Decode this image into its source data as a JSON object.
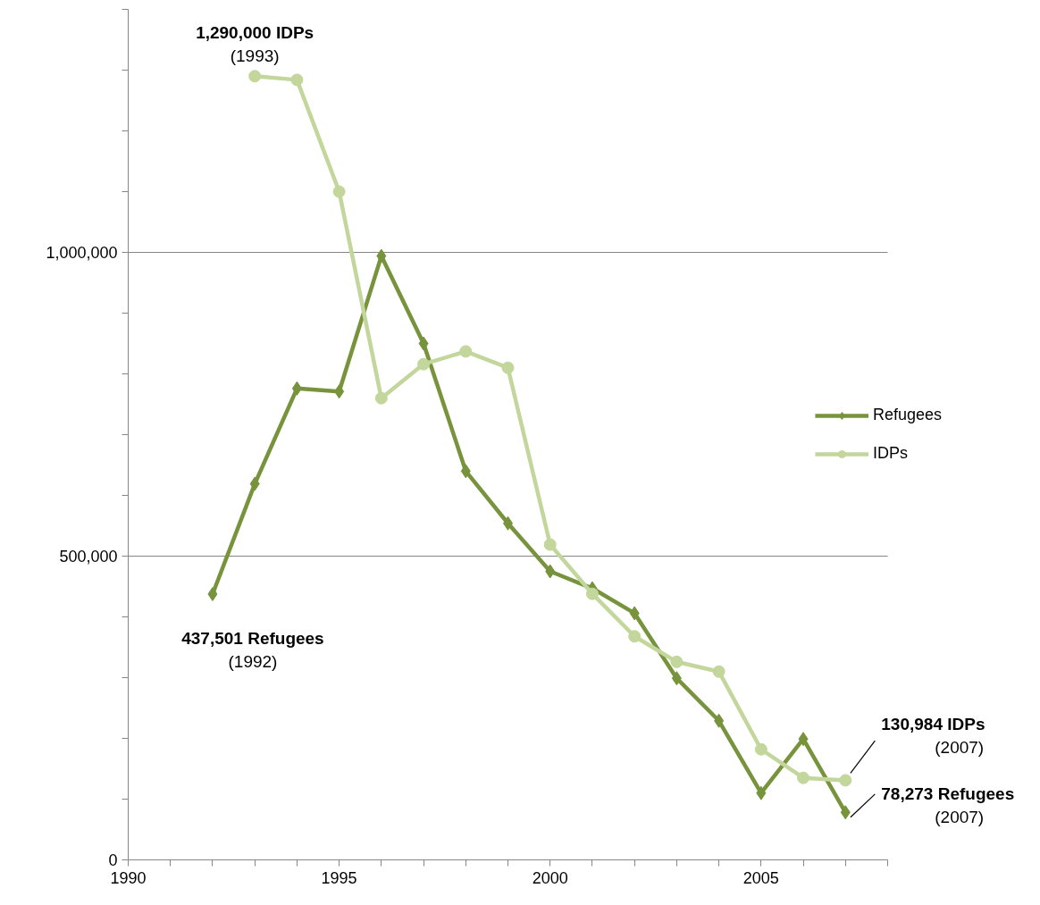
{
  "chart_data": {
    "type": "line",
    "x": [
      1992,
      1993,
      1994,
      1995,
      1996,
      1997,
      1998,
      1999,
      2000,
      2001,
      2002,
      2003,
      2004,
      2005,
      2006,
      2007
    ],
    "series": [
      {
        "name": "Refugees",
        "color": "#77933c",
        "marker": "diamond",
        "values": [
          437501,
          619000,
          776000,
          771000,
          994000,
          850000,
          640000,
          554000,
          475000,
          447000,
          406000,
          299000,
          229000,
          110000,
          199000,
          78273
        ]
      },
      {
        "name": "IDPs",
        "color": "#c3d69b",
        "marker": "circle",
        "values": [
          null,
          1290000,
          1284000,
          1100000,
          760000,
          816000,
          837000,
          810000,
          519000,
          438000,
          368000,
          326000,
          310000,
          182000,
          135000,
          130984
        ]
      }
    ],
    "xlim": [
      1990,
      2008
    ],
    "xticks": [
      1990,
      {
        "value": 1991,
        "label": null
      },
      {
        "value": 1992,
        "label": null
      },
      {
        "value": 1993,
        "label": null
      },
      {
        "value": 1994,
        "label": null
      },
      1995,
      {
        "value": 1996,
        "label": null
      },
      {
        "value": 1997,
        "label": null
      },
      {
        "value": 1998,
        "label": null
      },
      {
        "value": 1999,
        "label": null
      },
      2000,
      {
        "value": 2001,
        "label": null
      },
      {
        "value": 2002,
        "label": null
      },
      {
        "value": 2003,
        "label": null
      },
      {
        "value": 2004,
        "label": null
      },
      2005,
      {
        "value": 2006,
        "label": null
      },
      {
        "value": 2007,
        "label": null
      },
      {
        "value": 2008,
        "label": null
      }
    ],
    "ylim": [
      0,
      1400000
    ],
    "yticks": [
      0,
      {
        "value": 100000,
        "label": null
      },
      {
        "value": 200000,
        "label": null
      },
      {
        "value": 300000,
        "label": null
      },
      {
        "value": 400000,
        "label": null
      },
      {
        "value": 500000,
        "label": "500,000"
      },
      {
        "value": 600000,
        "label": null
      },
      {
        "value": 700000,
        "label": null
      },
      {
        "value": 800000,
        "label": null
      },
      {
        "value": 900000,
        "label": null
      },
      {
        "value": 1000000,
        "label": "1,000,000"
      },
      {
        "value": 1100000,
        "label": null
      },
      {
        "value": 1200000,
        "label": null
      },
      {
        "value": 1300000,
        "label": null
      },
      {
        "value": 1400000,
        "label": null
      }
    ],
    "grid": "y",
    "legend": "right",
    "annotations": [
      {
        "text": "1,290,000 IDPs\n(1993)",
        "x": 1993,
        "y": 1290000
      },
      {
        "text": "437,501 Refugees\n(1992)",
        "x": 1992,
        "y": 437501
      },
      {
        "text": "130,984 IDPs\n(2007)",
        "x": 2007,
        "y": 130984
      },
      {
        "text": "78,273 Refugees\n(2007)",
        "x": 2007,
        "y": 78273
      }
    ]
  }
}
